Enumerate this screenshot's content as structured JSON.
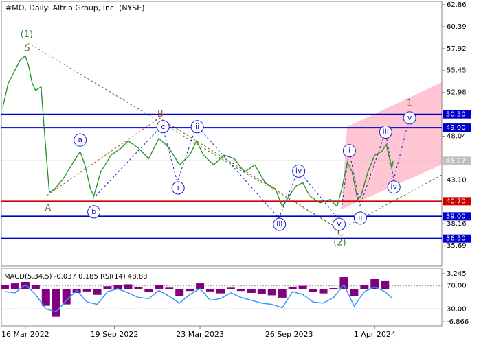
{
  "chart_data": [
    {
      "type": "line",
      "title": "#MO, Daily:  Altria Group, Inc. (NYSE)",
      "x": [
        2,
        10,
        20,
        28,
        35,
        40,
        45,
        50,
        58,
        62,
        66,
        70,
        78,
        90,
        105,
        115,
        122,
        130,
        135,
        145,
        160,
        175,
        185,
        200,
        215,
        230,
        245,
        260,
        275,
        285,
        295,
        310,
        325,
        340,
        355,
        370,
        385,
        400,
        410,
        420,
        430,
        440,
        450,
        465,
        480,
        490,
        497,
        505,
        512,
        520,
        525,
        535,
        545,
        555,
        562,
        570,
        572
      ],
      "xlim": [
        0,
        643
      ],
      "xticks": [
        {
          "value": 35,
          "label": "16 Mar 2022"
        },
        {
          "value": 165,
          "label": "19 Sep 2022"
        },
        {
          "value": 290,
          "label": "23 Mar 2023"
        },
        {
          "value": 420,
          "label": "26 Sep 2023"
        },
        {
          "value": 545,
          "label": "1 Apr 2024"
        }
      ],
      "ylim": [
        33.38,
        63.24
      ],
      "yticks": [
        62.86,
        60.39,
        57.92,
        55.45,
        52.98,
        48.04,
        {
          "value": 43.1,
          "label": "43.10"
        },
        38.16,
        35.69
      ],
      "series": [
        {
          "color": "#1f8f1f",
          "values": [
            51.3,
            54.0,
            55.5,
            56.7,
            57.1,
            55.9,
            54.0,
            53.2,
            53.6,
            49.4,
            45.5,
            41.7,
            42.1,
            43.2,
            45.1,
            46.3,
            44.8,
            42.1,
            41.3,
            44.0,
            45.9,
            46.7,
            47.5,
            46.7,
            45.5,
            47.8,
            46.7,
            44.8,
            45.9,
            47.5,
            45.9,
            44.8,
            45.9,
            45.5,
            44.0,
            44.8,
            42.8,
            42.1,
            40.1,
            41.3,
            42.4,
            42.8,
            41.3,
            40.5,
            40.9,
            40.1,
            42.1,
            45.1,
            44.0,
            40.9,
            41.3,
            44.0,
            45.9,
            46.3,
            47.1,
            44.4,
            45.27
          ]
        }
      ],
      "levels": [
        {
          "value": 50.5,
          "label": "50.50",
          "color": "#0000cc"
        },
        {
          "value": 49,
          "label": "49.00",
          "color": "#0000cc"
        },
        {
          "value": 45.27,
          "color": "#c0c0c0"
        },
        {
          "value": 40.7,
          "label": "40.70",
          "color": "#cc0000"
        },
        {
          "value": 39,
          "label": "39.00",
          "color": "#0000cc"
        },
        {
          "value": 36.5,
          "label": "36.50",
          "color": "#0000cc"
        }
      ],
      "annotations": [
        {
          "text": "(1)",
          "x": 37,
          "y": 59.5,
          "color": "#2e8b2e"
        },
        {
          "text": "5",
          "x": 38,
          "y": 57.9,
          "color": "#a0522d"
        },
        {
          "text": "A",
          "x": 68,
          "y": 39.9,
          "color": "#a0522d"
        },
        {
          "text": "B",
          "x": 232,
          "y": 50.5,
          "color": "#a0522d"
        },
        {
          "text": "C",
          "x": 495,
          "y": 37.1,
          "color": "#a0522d"
        },
        {
          "text": "(2)",
          "x": 494,
          "y": 36.0,
          "color": "#2e8b2e"
        },
        {
          "text": "1",
          "x": 596,
          "y": 51.7,
          "color": "#a0522d"
        },
        {
          "text": "a",
          "x": 115,
          "y": 47.6,
          "color": "#1a1acc",
          "circled": true
        },
        {
          "text": "b",
          "x": 135,
          "y": 39.5,
          "color": "#1a1acc",
          "circled": true
        },
        {
          "text": "c",
          "x": 236,
          "y": 49.1,
          "color": "#1a1acc",
          "circled": true
        },
        {
          "text": "i",
          "x": 258,
          "y": 42.2,
          "color": "#1a1acc",
          "circled": true
        },
        {
          "text": "ii",
          "x": 286,
          "y": 49.1,
          "color": "#1a1acc",
          "circled": true
        },
        {
          "text": "iii",
          "x": 406,
          "y": 38.1,
          "color": "#1a1acc",
          "circled": true
        },
        {
          "text": "iv",
          "x": 434,
          "y": 44.1,
          "color": "#1a1acc",
          "circled": true
        },
        {
          "text": "v",
          "x": 493,
          "y": 38.1,
          "color": "#1a1acc",
          "circled": true
        },
        {
          "text": "i",
          "x": 508,
          "y": 46.4,
          "color": "#1a1acc",
          "circled": true
        },
        {
          "text": "ii",
          "x": 524,
          "y": 38.8,
          "color": "#1a1acc",
          "circled": true
        },
        {
          "text": "iii",
          "x": 561,
          "y": 48.5,
          "color": "#1a1acc",
          "circled": true
        },
        {
          "text": "iv",
          "x": 573,
          "y": 42.3,
          "color": "#1a1acc",
          "circled": true
        },
        {
          "text": "v",
          "x": 596,
          "y": 50.1,
          "color": "#1a1acc",
          "circled": true
        }
      ]
    },
    {
      "type": "bar",
      "title": "MACD(5,34,5) -0.037 0.185 RSI(14) 48.83",
      "x": [
        5,
        20,
        35,
        50,
        65,
        80,
        95,
        110,
        125,
        140,
        155,
        170,
        185,
        200,
        215,
        230,
        245,
        260,
        275,
        290,
        305,
        320,
        335,
        350,
        365,
        380,
        395,
        410,
        425,
        440,
        455,
        470,
        485,
        500,
        515,
        530,
        545,
        560,
        570
      ],
      "xlim": [
        0,
        643
      ],
      "ylim": [
        -7.72,
        4.38
      ],
      "yticks": [
        3.245,
        -6.866
      ],
      "y2lim": [
        0.6,
        100.6
      ],
      "y2ticks": [
        {
          "value": 70,
          "label": "70.00"
        },
        {
          "value": 30,
          "label": "30.00"
        }
      ],
      "series": [
        {
          "color": "#800080",
          "values": [
            0.8,
            1.2,
            1.5,
            0.9,
            -3.5,
            -5.8,
            -3.2,
            -0.8,
            -0.5,
            -1.2,
            0.6,
            0.8,
            1.0,
            0.4,
            -0.6,
            0.9,
            0.3,
            -1.5,
            -0.4,
            1.2,
            -0.5,
            -0.9,
            0.3,
            -0.4,
            -0.8,
            -1.0,
            -1.3,
            -1.8,
            0.5,
            0.7,
            -0.6,
            -0.9,
            0.2,
            2.5,
            -1.5,
            0.8,
            2.2,
            1.8,
            -0.04
          ]
        },
        {
          "color": "#3399ff",
          "axis": "y2",
          "values": [
            60,
            58,
            72,
            55,
            30,
            25,
            45,
            62,
            42,
            38,
            60,
            65,
            58,
            50,
            48,
            62,
            52,
            40,
            55,
            65,
            45,
            48,
            58,
            50,
            45,
            40,
            38,
            32,
            60,
            55,
            42,
            40,
            50,
            72,
            35,
            60,
            68,
            60,
            48.83
          ]
        }
      ]
    }
  ]
}
